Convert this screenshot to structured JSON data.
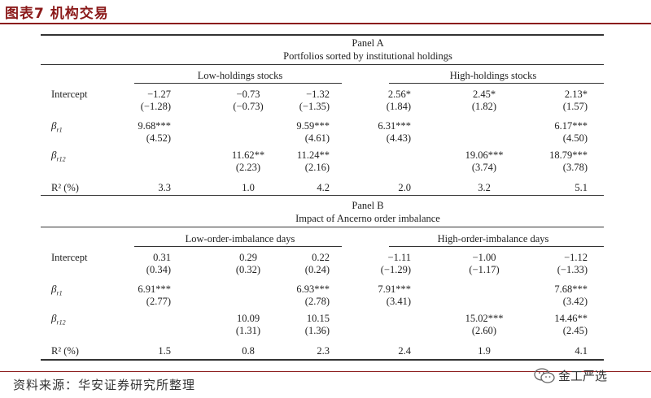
{
  "figure": {
    "title": "图表7 机构交易"
  },
  "panelA": {
    "name": "Panel A",
    "subtitle": "Portfolios sorted by institutional holdings",
    "group_left": "Low-holdings stocks",
    "group_right": "High-holdings stocks",
    "rows": [
      {
        "label": "Intercept",
        "cells": [
          "−1.27",
          "−0.73",
          "−1.32",
          "2.56*",
          "2.45*",
          "2.13*"
        ],
        "tstats": [
          "(−1.28)",
          "(−0.73)",
          "(−1.35)",
          "(1.84)",
          "(1.82)",
          "(1.57)"
        ]
      },
      {
        "label_sym": "β",
        "label_sub": "r1",
        "cells": [
          "9.68***",
          "",
          "9.59***",
          "6.31***",
          "",
          "6.17***"
        ],
        "tstats": [
          "(4.52)",
          "",
          "(4.61)",
          "(4.43)",
          "",
          "(4.50)"
        ]
      },
      {
        "label_sym": "β",
        "label_sub": "r12",
        "cells": [
          "",
          "11.62**",
          "11.24**",
          "",
          "19.06***",
          "18.79***"
        ],
        "tstats": [
          "",
          "(2.23)",
          "(2.16)",
          "",
          "(3.74)",
          "(3.78)"
        ]
      },
      {
        "label": "R² (%)",
        "cells": [
          "3.3",
          "1.0",
          "4.2",
          "2.0",
          "3.2",
          "5.1"
        ]
      }
    ]
  },
  "panelB": {
    "name": "Panel B",
    "subtitle": "Impact of Ancerno order imbalance",
    "group_left": "Low-order-imbalance days",
    "group_right": "High-order-imbalance days",
    "rows": [
      {
        "label": "Intercept",
        "cells": [
          "0.31",
          "0.29",
          "0.22",
          "−1.11",
          "−1.00",
          "−1.12"
        ],
        "tstats": [
          "(0.34)",
          "(0.32)",
          "(0.24)",
          "(−1.29)",
          "(−1.17)",
          "(−1.33)"
        ]
      },
      {
        "label_sym": "β",
        "label_sub": "r1",
        "cells": [
          "6.91***",
          "",
          "6.93***",
          "7.91***",
          "",
          "7.68***"
        ],
        "tstats": [
          "(2.77)",
          "",
          "(2.78)",
          "(3.41)",
          "",
          "(3.42)"
        ]
      },
      {
        "label_sym": "β",
        "label_sub": "r12",
        "cells": [
          "",
          "10.09",
          "10.15",
          "",
          "15.02***",
          "14.46**"
        ],
        "tstats": [
          "",
          "(1.31)",
          "(1.36)",
          "",
          "(2.60)",
          "(2.45)"
        ]
      },
      {
        "label": "R² (%)",
        "cells": [
          "1.5",
          "0.8",
          "2.3",
          "2.4",
          "1.9",
          "4.1"
        ]
      }
    ]
  },
  "footer": {
    "source": "资料来源：华安证券研究所整理",
    "brand": "金工严选",
    "brand_icon": "wechat-icon"
  }
}
